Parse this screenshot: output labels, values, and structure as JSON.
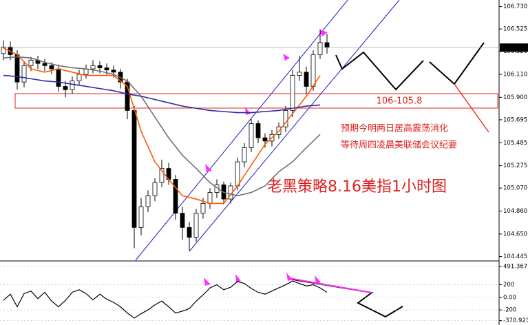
{
  "chart_data": [
    {
      "type": "candlestick",
      "open": [
        106.3,
        106.36,
        106.29,
        106.04,
        106.19,
        106.24,
        106.21,
        106.19,
        106.16,
        106.0,
        105.97,
        106.05,
        106.11,
        106.16,
        106.19,
        106.17,
        106.15,
        106.13,
        106.04,
        105.78,
        104.71,
        104.9,
        105.0,
        105.12,
        105.25,
        105.15,
        104.84,
        104.71,
        104.62,
        104.84,
        104.93,
        105.03,
        105.1,
        104.97,
        105.09,
        105.31,
        105.44,
        105.66,
        105.53,
        105.5,
        105.56,
        105.63,
        105.78,
        106.1,
        106.13,
        106.0,
        106.29,
        106.4
      ],
      "high": [
        106.42,
        106.41,
        106.33,
        106.23,
        106.27,
        106.28,
        106.25,
        106.22,
        106.2,
        106.05,
        106.09,
        106.15,
        106.2,
        106.24,
        106.23,
        106.21,
        106.19,
        106.16,
        106.07,
        105.82,
        104.98,
        105.05,
        105.16,
        105.33,
        105.3,
        105.19,
        104.9,
        104.76,
        104.88,
        104.98,
        105.07,
        105.15,
        105.13,
        105.12,
        105.35,
        105.48,
        105.7,
        105.69,
        105.57,
        105.6,
        105.67,
        105.82,
        106.15,
        106.28,
        106.18,
        106.33,
        106.52,
        106.48
      ],
      "low": [
        106.24,
        106.24,
        105.97,
        105.99,
        106.14,
        106.16,
        106.14,
        106.11,
        105.95,
        105.9,
        105.93,
        106.01,
        106.07,
        106.12,
        106.12,
        106.1,
        106.08,
        105.98,
        105.7,
        104.52,
        104.64,
        104.85,
        104.95,
        105.08,
        105.1,
        104.78,
        104.6,
        104.5,
        104.58,
        104.79,
        104.88,
        104.98,
        104.92,
        104.93,
        105.05,
        105.26,
        105.4,
        105.48,
        105.44,
        105.45,
        105.52,
        105.58,
        105.72,
        106.05,
        105.93,
        105.96,
        106.25,
        106.3
      ],
      "close": [
        106.36,
        106.29,
        106.04,
        106.19,
        106.24,
        106.21,
        106.19,
        106.16,
        106.0,
        105.97,
        106.05,
        106.11,
        106.16,
        106.19,
        106.17,
        106.15,
        106.13,
        106.04,
        105.78,
        104.71,
        104.9,
        105.0,
        105.12,
        105.25,
        105.15,
        104.84,
        104.71,
        104.62,
        104.84,
        104.93,
        105.03,
        105.1,
        104.97,
        105.09,
        105.31,
        105.44,
        105.66,
        105.53,
        105.5,
        105.56,
        105.63,
        105.78,
        106.1,
        106.13,
        106.0,
        106.29,
        106.4,
        106.36
      ],
      "overlays": [
        {
          "color": "#ff5a00",
          "values": [
            106.35,
            106.29,
            106.16,
            106.13,
            106.16,
            106.13,
            106.1,
            106.1,
            106.1,
            106.0,
            105.59,
            105.31,
            105.15,
            105.0,
            104.97,
            104.93,
            104.93,
            105.09,
            105.28,
            105.47,
            105.59,
            105.75,
            105.91,
            106.1
          ]
        },
        {
          "color": "#707070",
          "values": [
            106.26,
            106.27,
            106.26,
            106.22,
            106.19,
            106.17,
            106.16,
            106.14,
            106.11,
            106.05,
            105.91,
            105.72,
            105.53,
            105.37,
            105.25,
            105.12,
            105.03,
            105.0,
            105.03,
            105.09,
            105.22,
            105.31,
            105.44,
            105.56
          ]
        },
        {
          "color": "#2a2aa8",
          "values": [
            106.1,
            106.09,
            106.07,
            106.05,
            106.04,
            106.02,
            106.0,
            105.98,
            105.96,
            105.93,
            105.91,
            105.88,
            105.85,
            105.82,
            105.8,
            105.78,
            105.77,
            105.76,
            105.76,
            105.77,
            105.78,
            105.8,
            105.82,
            105.83
          ]
        }
      ],
      "ylim": [
        104.41,
        106.79
      ],
      "yticks": [
        {
          "value": 106.73,
          "label": "106.730"
        },
        106.525,
        {
          "value": 106.32,
          "label": "106.320"
        },
        {
          "value": 106.11,
          "label": "106.110"
        },
        {
          "value": 105.9,
          "label": "105.900"
        },
        105.695,
        105.485,
        105.275,
        {
          "value": 105.07,
          "label": "105.070"
        },
        {
          "value": 104.86,
          "label": "104.860"
        },
        {
          "value": 104.65,
          "label": "104.650"
        },
        104.445
      ],
      "last_price": {
        "value": 106.355,
        "label": "106.355"
      },
      "annotations": [
        "106-105.8",
        "预期今明两日居高震荡消化",
        "等待周四凌晨美联储会议纪要",
        "老黑策略8.16美指1小时图"
      ]
    },
    {
      "type": "line",
      "color": "#000000",
      "values": [
        -50,
        50,
        -150,
        60,
        100,
        -20,
        80,
        -60,
        -150,
        -50,
        80,
        120,
        60,
        -40,
        50,
        -30,
        -80,
        -150,
        -250,
        -330,
        -260,
        -200,
        -120,
        -60,
        -150,
        -250,
        -220,
        -180,
        -60,
        40,
        150,
        200,
        120,
        160,
        250,
        220,
        140,
        80,
        50,
        100,
        150,
        200,
        260,
        220,
        180,
        200,
        150,
        80
      ],
      "ylim": [
        -440,
        556
      ],
      "yticks": [
        491.3671,
        200,
        {
          "value": 0,
          "label": "0.00"
        },
        -200,
        -370.923
      ]
    }
  ]
}
